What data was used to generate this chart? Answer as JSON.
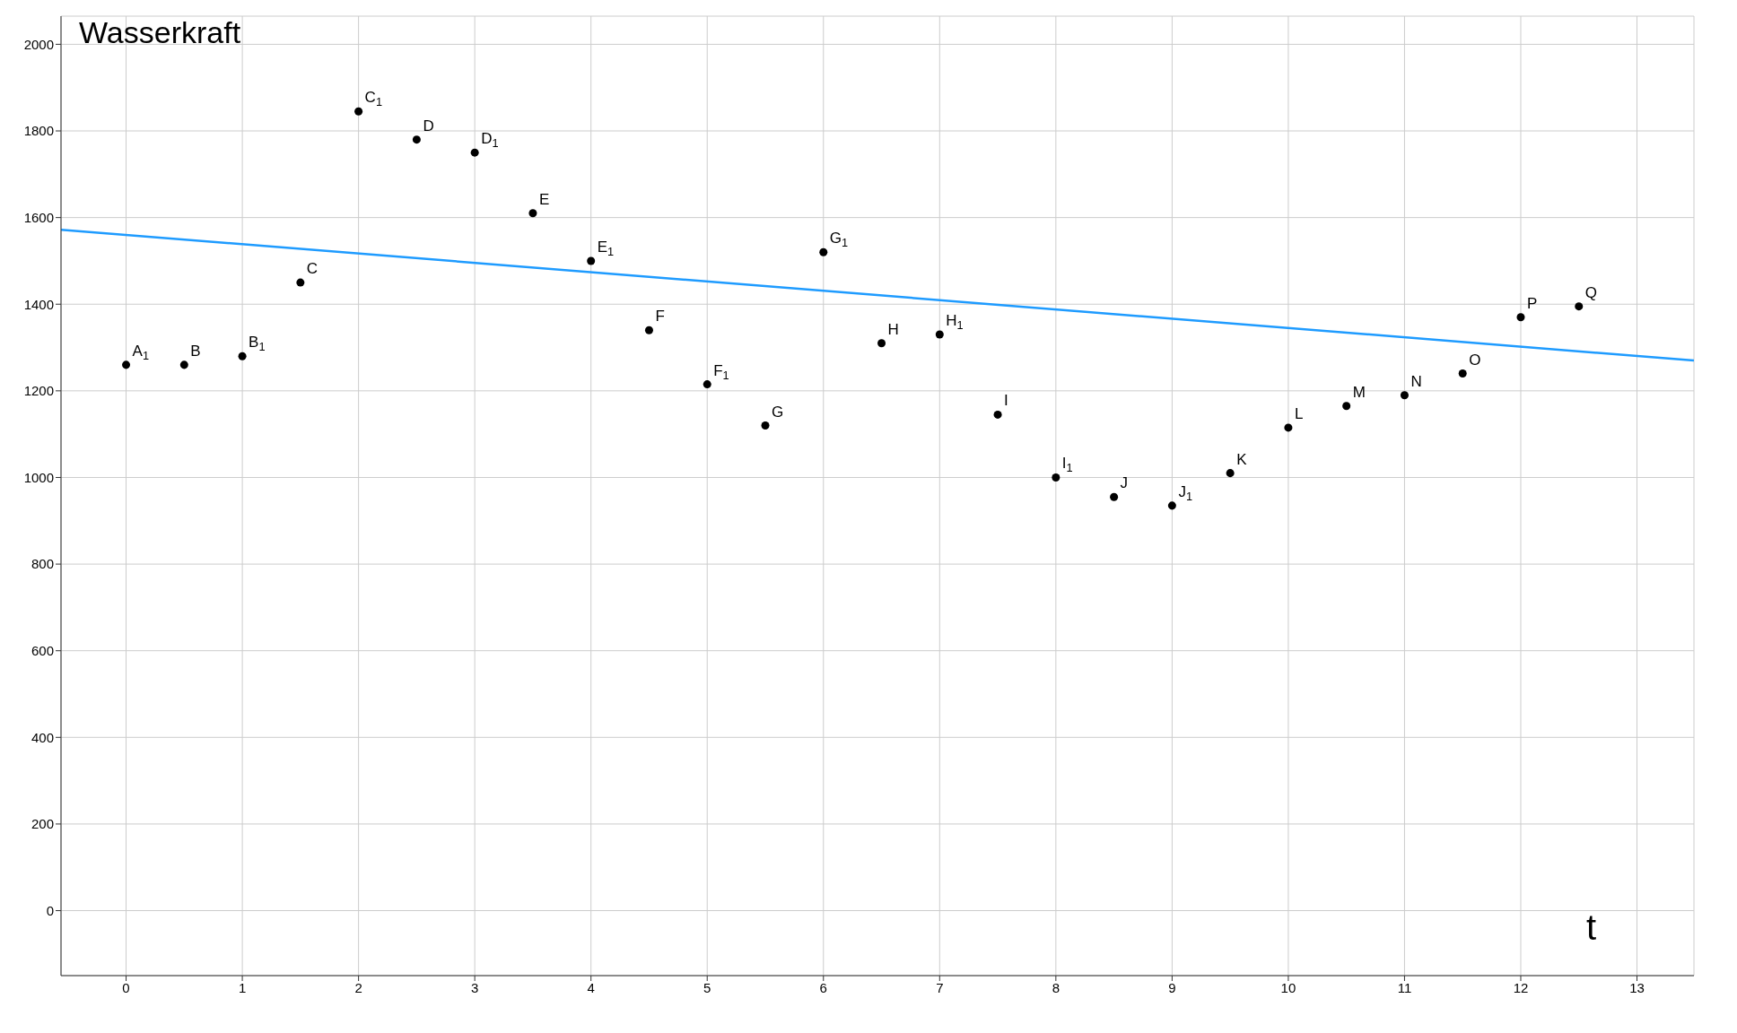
{
  "chart_data": {
    "type": "scatter",
    "title": "Wasserkraft",
    "xlabel": "t",
    "x": [
      0,
      0.5,
      1,
      1.5,
      2,
      2.5,
      3,
      3.5,
      4,
      4.5,
      5,
      5.5,
      6,
      6.5,
      7,
      7.5,
      8,
      8.5,
      9,
      9.5,
      10,
      10.5,
      11,
      11.5,
      12,
      12.5
    ],
    "series": [
      {
        "color": "#000000",
        "values": [
          1260,
          1260,
          1280,
          1450,
          1845,
          1780,
          1750,
          1610,
          1500,
          1340,
          1215,
          1120,
          1520,
          1310,
          1330,
          1145,
          1000,
          955,
          935,
          1010,
          1115,
          1165,
          1190,
          1240,
          1370,
          1395
        ]
      },
      {
        "type": "line",
        "marker": "none",
        "color": "#1e9bff",
        "x": [
          -0.56,
          13.49
        ],
        "values": [
          1572,
          1270
        ]
      }
    ],
    "annotations": [
      {
        "text": "A$_{1}$",
        "x": 0,
        "y": 1260
      },
      {
        "text": "B",
        "x": 0.5,
        "y": 1260
      },
      {
        "text": "B$_{1}$",
        "x": 1,
        "y": 1280
      },
      {
        "text": "C",
        "x": 1.5,
        "y": 1450
      },
      {
        "text": "C$_{1}$",
        "x": 2,
        "y": 1845
      },
      {
        "text": "D",
        "x": 2.5,
        "y": 1780
      },
      {
        "text": "D$_{1}$",
        "x": 3,
        "y": 1750
      },
      {
        "text": "E",
        "x": 3.5,
        "y": 1610
      },
      {
        "text": "E$_{1}$",
        "x": 4,
        "y": 1500
      },
      {
        "text": "F",
        "x": 4.5,
        "y": 1340
      },
      {
        "text": "F$_{1}$",
        "x": 5,
        "y": 1215
      },
      {
        "text": "G",
        "x": 5.5,
        "y": 1120
      },
      {
        "text": "G$_{1}$",
        "x": 6,
        "y": 1520
      },
      {
        "text": "H",
        "x": 6.5,
        "y": 1310
      },
      {
        "text": "H$_{1}$",
        "x": 7,
        "y": 1330
      },
      {
        "text": "I",
        "x": 7.5,
        "y": 1145
      },
      {
        "text": "I$_{1}$",
        "x": 8,
        "y": 1000
      },
      {
        "text": "J",
        "x": 8.5,
        "y": 955
      },
      {
        "text": "J$_{1}$",
        "x": 9,
        "y": 935
      },
      {
        "text": "K",
        "x": 9.5,
        "y": 1010
      },
      {
        "text": "L",
        "x": 10,
        "y": 1115
      },
      {
        "text": "M",
        "x": 10.5,
        "y": 1165
      },
      {
        "text": "N",
        "x": 11,
        "y": 1190
      },
      {
        "text": "O",
        "x": 11.5,
        "y": 1240
      },
      {
        "text": "P",
        "x": 12,
        "y": 1370
      },
      {
        "text": "Q",
        "x": 12.5,
        "y": 1395
      }
    ],
    "xlim": [
      -0.56,
      13.49
    ],
    "xticks": [
      0,
      1,
      2,
      3,
      4,
      5,
      6,
      7,
      8,
      9,
      10,
      11,
      12,
      13
    ],
    "ylim": [
      -150,
      2065
    ],
    "yticks": [
      0,
      200,
      400,
      600,
      800,
      1000,
      1200,
      1400,
      1600,
      1800,
      2000
    ],
    "grid": true,
    "marker": "circle",
    "line_style": "solid"
  }
}
